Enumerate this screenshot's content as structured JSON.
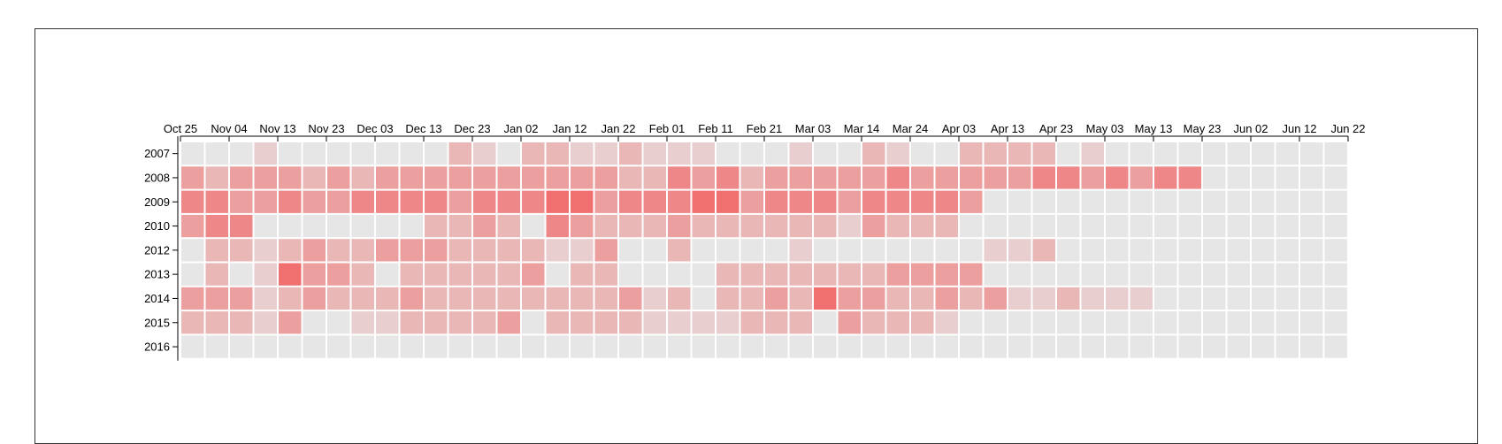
{
  "chart_data": {
    "type": "heatmap",
    "title": "",
    "xlabel": "",
    "ylabel": "",
    "x_tick_labels": [
      "Oct 25",
      "Nov 04",
      "Nov 13",
      "Nov 23",
      "Dec 03",
      "Dec 13",
      "Dec 23",
      "Jan 02",
      "Jan 12",
      "Jan 22",
      "Feb 01",
      "Feb 11",
      "Feb 21",
      "Mar 03",
      "Mar 14",
      "Mar 24",
      "Apr 03",
      "Apr 13",
      "Apr 23",
      "May 03",
      "May 13",
      "May 23",
      "Jun 02",
      "Jun 12",
      "Jun 22"
    ],
    "y_categories": [
      "2007",
      "2008",
      "2009",
      "2010",
      "2012",
      "2013",
      "2014",
      "2015",
      "2016"
    ],
    "columns_per_tick": 2,
    "value_range": [
      0,
      5
    ],
    "empty_color": "#e6e6e6",
    "max_color": "#f07070",
    "values": [
      [
        0,
        0,
        0,
        1,
        0,
        0,
        0,
        0,
        0,
        0,
        0,
        2,
        1,
        0,
        2,
        2,
        1,
        1,
        2,
        1,
        1,
        1,
        0,
        0,
        0,
        1,
        0,
        0,
        2,
        1,
        0,
        0,
        2,
        2,
        2,
        2,
        0,
        1,
        0,
        0,
        0,
        0,
        0,
        0,
        0,
        0,
        0,
        0
      ],
      [
        3,
        2,
        3,
        3,
        3,
        2,
        3,
        2,
        3,
        3,
        3,
        3,
        3,
        3,
        3,
        3,
        3,
        3,
        2,
        2,
        4,
        3,
        4,
        2,
        3,
        3,
        3,
        3,
        3,
        4,
        3,
        3,
        3,
        3,
        3,
        4,
        4,
        3,
        4,
        3,
        4,
        4,
        0,
        0,
        0,
        0,
        0,
        0
      ],
      [
        4,
        4,
        3,
        3,
        4,
        3,
        3,
        4,
        4,
        4,
        4,
        3,
        4,
        4,
        4,
        5,
        5,
        3,
        4,
        4,
        4,
        5,
        5,
        3,
        4,
        4,
        4,
        3,
        4,
        4,
        4,
        4,
        3,
        0,
        0,
        0,
        0,
        0,
        0,
        0,
        0,
        0,
        0,
        0,
        0,
        0,
        0,
        0
      ],
      [
        3,
        4,
        4,
        0,
        0,
        0,
        0,
        0,
        0,
        0,
        2,
        2,
        3,
        2,
        0,
        4,
        3,
        2,
        2,
        2,
        3,
        2,
        2,
        2,
        2,
        2,
        2,
        1,
        3,
        2,
        2,
        2,
        0,
        0,
        0,
        0,
        0,
        0,
        0,
        0,
        0,
        0,
        0,
        0,
        0,
        0,
        0,
        0
      ],
      [
        0,
        2,
        2,
        1,
        2,
        3,
        2,
        2,
        3,
        3,
        3,
        2,
        2,
        2,
        2,
        1,
        1,
        3,
        0,
        0,
        2,
        0,
        0,
        0,
        0,
        1,
        0,
        0,
        0,
        0,
        0,
        0,
        0,
        1,
        1,
        2,
        0,
        0,
        0,
        0,
        0,
        0,
        0,
        0,
        0,
        0,
        0,
        0
      ],
      [
        0,
        2,
        0,
        1,
        5,
        3,
        3,
        2,
        0,
        2,
        2,
        2,
        2,
        2,
        3,
        0,
        2,
        2,
        0,
        0,
        0,
        0,
        2,
        2,
        2,
        2,
        2,
        2,
        2,
        3,
        3,
        3,
        3,
        0,
        0,
        0,
        0,
        0,
        0,
        0,
        0,
        0,
        0,
        0,
        0,
        0,
        0,
        0
      ],
      [
        3,
        3,
        3,
        1,
        2,
        3,
        2,
        2,
        2,
        3,
        2,
        2,
        2,
        2,
        2,
        2,
        2,
        2,
        3,
        1,
        2,
        0,
        2,
        2,
        3,
        2,
        5,
        3,
        3,
        2,
        2,
        3,
        2,
        3,
        1,
        1,
        2,
        1,
        1,
        1,
        0,
        0,
        0,
        0,
        0,
        0,
        0,
        0
      ],
      [
        2,
        2,
        2,
        1,
        3,
        0,
        0,
        1,
        1,
        2,
        2,
        2,
        2,
        3,
        0,
        2,
        2,
        2,
        2,
        1,
        1,
        1,
        1,
        2,
        2,
        2,
        0,
        3,
        2,
        2,
        2,
        1,
        0,
        0,
        0,
        0,
        0,
        0,
        0,
        0,
        0,
        0,
        0,
        0,
        0,
        0,
        0,
        0
      ],
      [
        0,
        0,
        0,
        0,
        0,
        0,
        0,
        0,
        0,
        0,
        0,
        0,
        0,
        0,
        0,
        0,
        0,
        0,
        0,
        0,
        0,
        0,
        0,
        0,
        0,
        0,
        0,
        0,
        0,
        0,
        0,
        0,
        0,
        0,
        0,
        0,
        0,
        0,
        0,
        0,
        0,
        0,
        0,
        0,
        0,
        0,
        0,
        0
      ]
    ]
  }
}
